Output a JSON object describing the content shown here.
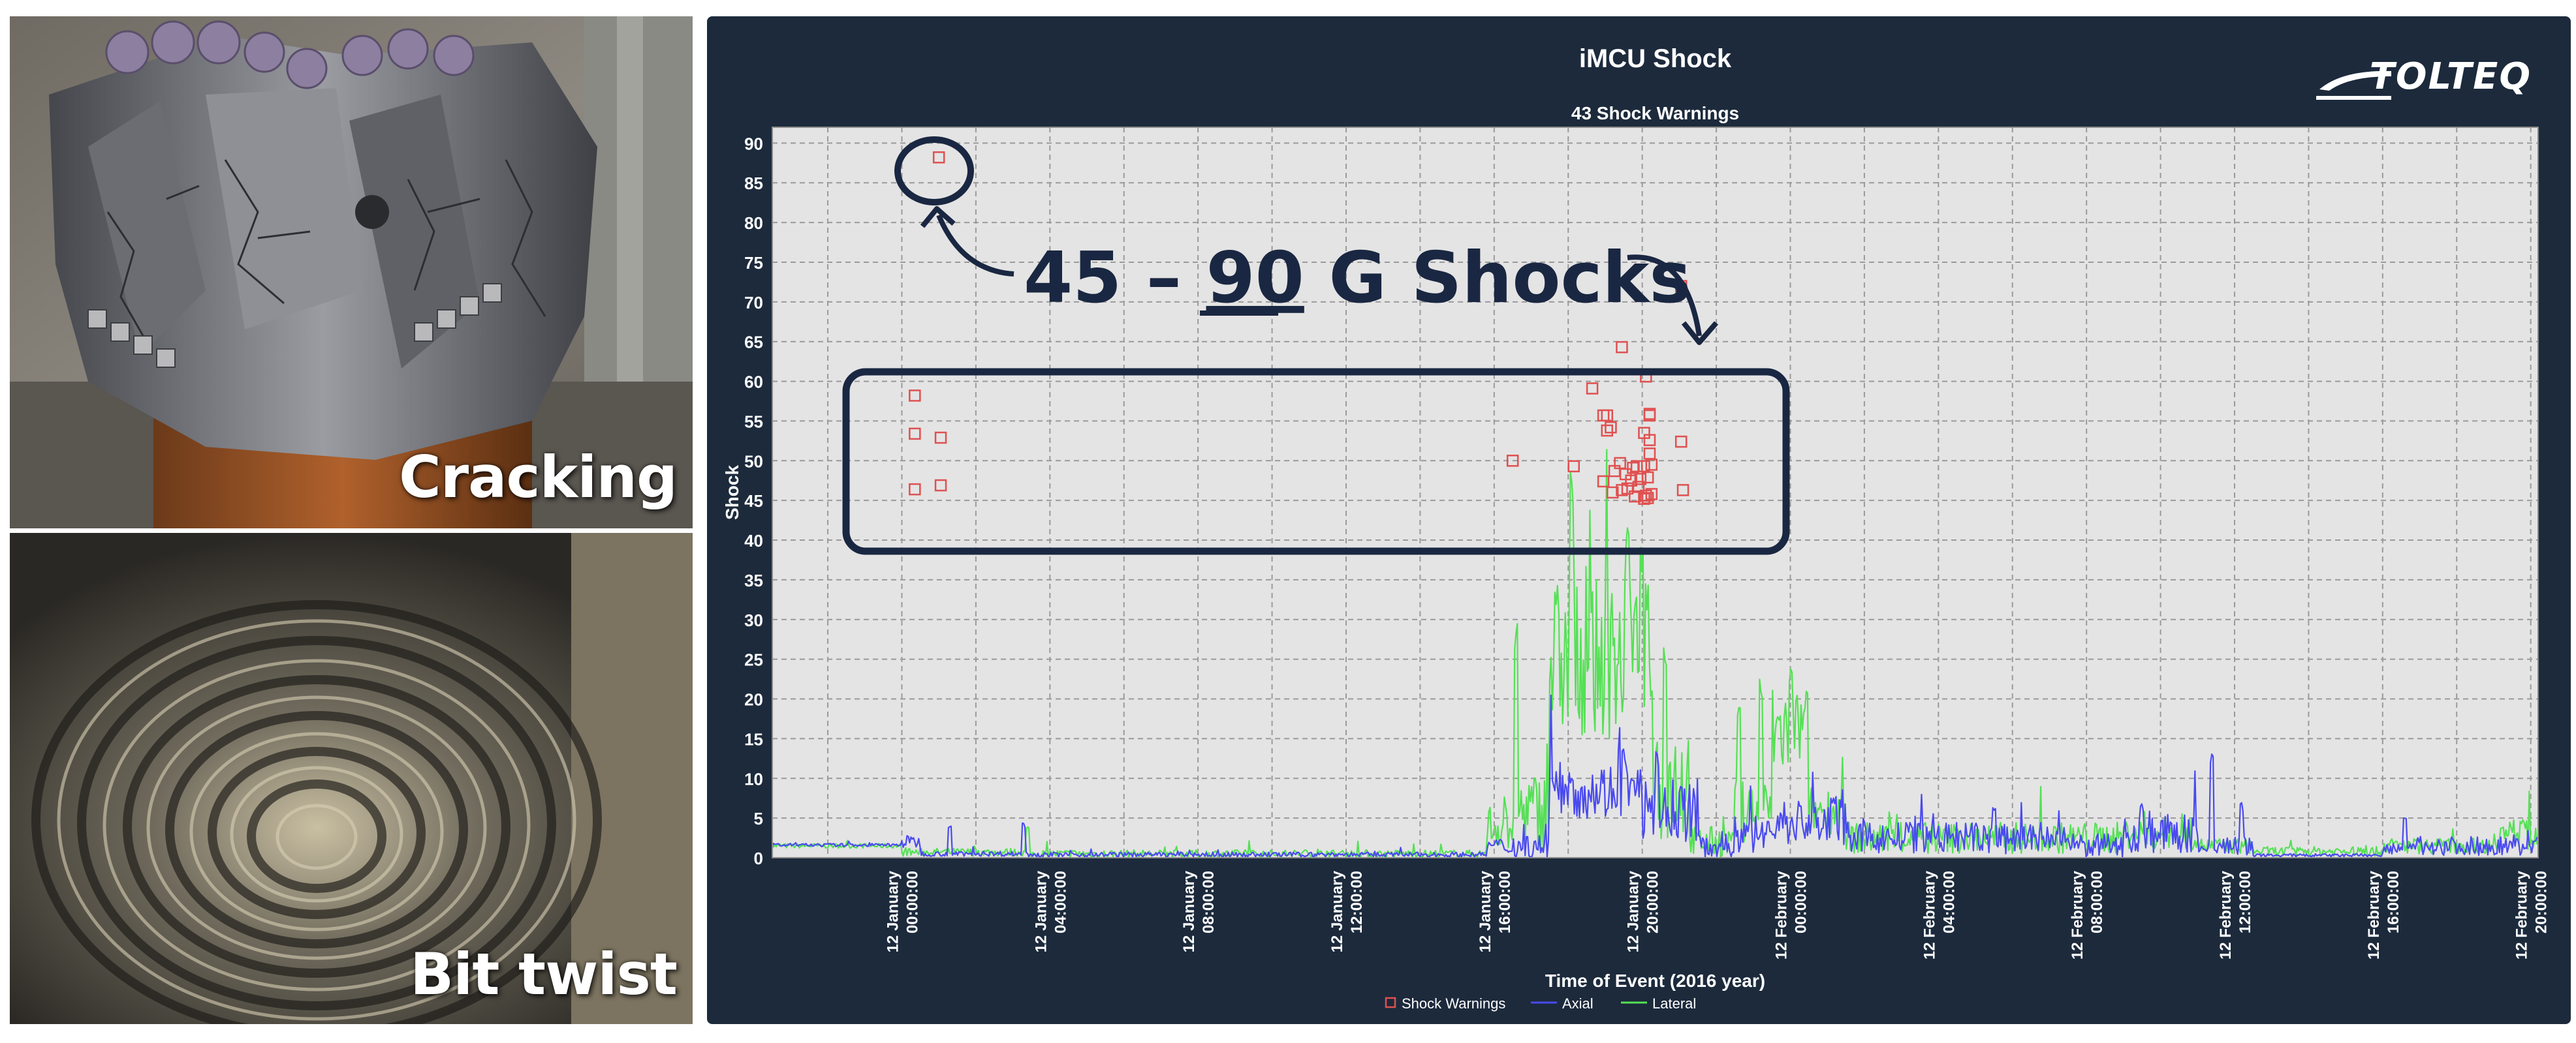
{
  "photos": [
    {
      "label": "Cracking"
    },
    {
      "label": "Bit twist"
    }
  ],
  "logo": {
    "text": "TOLTEQ"
  },
  "annotation": {
    "prefix": "45 – ",
    "underlined": "90",
    "suffix": " G Shocks"
  },
  "colors": {
    "panel": "#1c2a3c",
    "plot_bg": "#e4e4e4",
    "axial": "#4a4af0",
    "lateral": "#55e055",
    "warning": "#e05050",
    "annotation": "#1a2742"
  },
  "chart_data": {
    "type": "scatter",
    "title": "iMCU Shock",
    "subtitle": "43 Shock Warnings",
    "xlabel": "Time of Event (2016 year)",
    "ylabel": "Shock",
    "ylim": [
      0,
      92
    ],
    "yticks": [
      0,
      5,
      10,
      15,
      20,
      25,
      30,
      35,
      40,
      45,
      50,
      55,
      60,
      65,
      70,
      75,
      80,
      85,
      90
    ],
    "xlim_hours": [
      -3.5,
      44.2
    ],
    "x_ticks": [
      {
        "line1": "12 January",
        "line2": "00:00:00"
      },
      {
        "line1": "12 January",
        "line2": "04:00:00"
      },
      {
        "line1": "12 January",
        "line2": "08:00:00"
      },
      {
        "line1": "12 January",
        "line2": "12:00:00"
      },
      {
        "line1": "12 January",
        "line2": "16:00:00"
      },
      {
        "line1": "12 January",
        "line2": "20:00:00"
      },
      {
        "line1": "12 February",
        "line2": "00:00:00"
      },
      {
        "line1": "12 February",
        "line2": "04:00:00"
      },
      {
        "line1": "12 February",
        "line2": "08:00:00"
      },
      {
        "line1": "12 February",
        "line2": "12:00:00"
      },
      {
        "line1": "12 February",
        "line2": "16:00:00"
      },
      {
        "line1": "12 February",
        "line2": "20:00:00"
      }
    ],
    "grid": true,
    "legend_position": "bottom",
    "legend": [
      "Shock Warnings",
      "Axial",
      "Lateral"
    ],
    "series": [
      {
        "name": "Shock Warnings",
        "kind": "markers",
        "points": [
          [
            1.0,
            88.2
          ],
          [
            0.35,
            58.2
          ],
          [
            0.35,
            53.4
          ],
          [
            1.05,
            52.9
          ],
          [
            0.35,
            46.4
          ],
          [
            1.05,
            46.9
          ],
          [
            16.5,
            50.0
          ],
          [
            18.15,
            49.3
          ],
          [
            18.65,
            59.1
          ],
          [
            18.95,
            55.7
          ],
          [
            19.05,
            55.7
          ],
          [
            19.05,
            53.8
          ],
          [
            19.15,
            54.2
          ],
          [
            18.95,
            47.4
          ],
          [
            19.25,
            48.7
          ],
          [
            19.2,
            46.0
          ],
          [
            19.4,
            49.7
          ],
          [
            19.45,
            64.3
          ],
          [
            19.45,
            46.3
          ],
          [
            19.55,
            48.3
          ],
          [
            19.6,
            46.5
          ],
          [
            19.7,
            47.5
          ],
          [
            19.75,
            49.1
          ],
          [
            19.8,
            45.5
          ],
          [
            19.9,
            46.7
          ],
          [
            19.85,
            49.3
          ],
          [
            20.05,
            45.2
          ],
          [
            20.1,
            60.6
          ],
          [
            20.1,
            45.6
          ],
          [
            20.05,
            53.5
          ],
          [
            20.15,
            47.9
          ],
          [
            20.2,
            55.7
          ],
          [
            20.2,
            52.6
          ],
          [
            20.2,
            50.9
          ],
          [
            20.25,
            49.5
          ],
          [
            20.25,
            45.8
          ],
          [
            20.2,
            55.9
          ],
          [
            20.15,
            45.3
          ],
          [
            20.05,
            49.3
          ],
          [
            19.95,
            47.7
          ],
          [
            21.05,
            72.0
          ],
          [
            21.05,
            52.4
          ],
          [
            21.1,
            46.3
          ]
        ]
      },
      {
        "name": "Axial",
        "kind": "line",
        "level_segments": [
          [
            -3.5,
            0.0,
            1.6,
            0.2
          ],
          [
            0.0,
            0.5,
            2.0,
            0.8
          ],
          [
            0.5,
            3.3,
            0.5,
            0.3
          ],
          [
            3.3,
            15.8,
            0.4,
            0.3
          ],
          [
            15.8,
            16.3,
            1.5,
            1.0
          ],
          [
            16.3,
            17.5,
            1.5,
            1.5
          ],
          [
            17.5,
            20.0,
            8.5,
            3.5
          ],
          [
            20.0,
            21.5,
            6.0,
            4.0
          ],
          [
            21.5,
            22.5,
            1.5,
            1.5
          ],
          [
            22.5,
            23.5,
            3.0,
            2.5
          ],
          [
            23.5,
            25.5,
            4.5,
            3.0
          ],
          [
            25.5,
            31.5,
            2.5,
            2.0
          ],
          [
            31.5,
            33.0,
            1.5,
            1.5
          ],
          [
            33.0,
            35.0,
            3.0,
            2.5
          ],
          [
            35.0,
            36.5,
            1.5,
            1.2
          ],
          [
            36.5,
            40.0,
            0.3,
            0.2
          ],
          [
            40.0,
            40.8,
            1.0,
            0.8
          ],
          [
            40.8,
            44.2,
            1.5,
            1.2
          ]
        ],
        "peaks": [
          [
            1.3,
            4.0
          ],
          [
            3.3,
            4.5
          ],
          [
            18.1,
            11.0
          ],
          [
            19.5,
            14.0
          ],
          [
            20.4,
            13.5
          ],
          [
            25.2,
            8.0
          ],
          [
            29.5,
            6.5
          ],
          [
            33.5,
            7.0
          ],
          [
            35.4,
            14.0
          ],
          [
            36.2,
            7.0
          ],
          [
            40.6,
            5.0
          ]
        ]
      },
      {
        "name": "Lateral",
        "kind": "line",
        "level_segments": [
          [
            -3.5,
            0.0,
            1.5,
            0.3
          ],
          [
            0.0,
            3.3,
            0.7,
            0.5
          ],
          [
            3.3,
            15.8,
            0.5,
            0.5
          ],
          [
            15.8,
            16.5,
            4.0,
            3.0
          ],
          [
            16.5,
            17.5,
            6.0,
            5.0
          ],
          [
            17.5,
            20.3,
            25.0,
            10.0
          ],
          [
            20.3,
            21.3,
            10.0,
            8.0
          ],
          [
            21.3,
            22.5,
            2.0,
            2.0
          ],
          [
            22.5,
            23.5,
            6.0,
            4.0
          ],
          [
            23.5,
            24.5,
            16.0,
            6.0
          ],
          [
            24.5,
            25.5,
            6.0,
            3.0
          ],
          [
            25.5,
            33.0,
            2.5,
            2.0
          ],
          [
            33.0,
            35.0,
            3.0,
            2.0
          ],
          [
            35.0,
            36.5,
            1.5,
            1.0
          ],
          [
            36.5,
            40.0,
            0.8,
            0.6
          ],
          [
            40.0,
            43.0,
            1.5,
            1.0
          ],
          [
            43.0,
            44.2,
            3.0,
            2.0
          ]
        ],
        "peaks": [
          [
            3.4,
            4.0
          ],
          [
            16.6,
            30.0
          ],
          [
            18.1,
            50.0
          ],
          [
            19.6,
            42.0
          ],
          [
            20.0,
            40.0
          ],
          [
            20.6,
            28.0
          ],
          [
            22.6,
            20.0
          ],
          [
            23.2,
            23.0
          ],
          [
            24.0,
            24.0
          ],
          [
            43.8,
            5.0
          ]
        ]
      }
    ]
  }
}
